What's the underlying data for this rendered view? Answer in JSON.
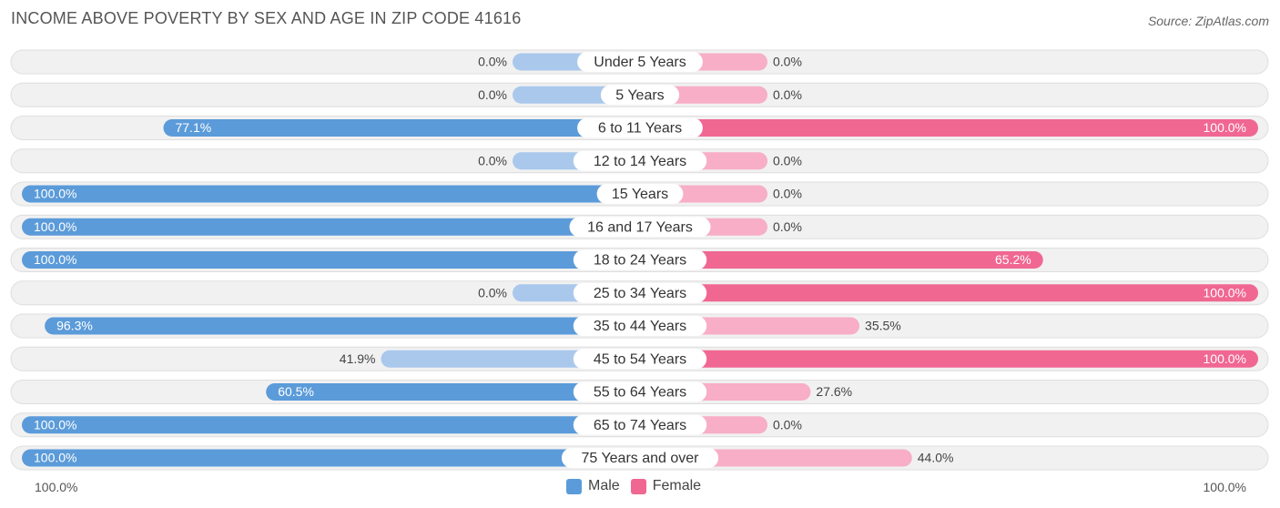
{
  "title": "INCOME ABOVE POVERTY BY SEX AND AGE IN ZIP CODE 41616",
  "source": "Source: ZipAtlas.com",
  "axis": {
    "left_label": "100.0%",
    "right_label": "100.0%"
  },
  "legend": [
    {
      "label": "Male",
      "color": "#5b9bd9"
    },
    {
      "label": "Female",
      "color": "#f06792"
    }
  ],
  "colors": {
    "male_strong": "#5b9bd9",
    "male_light": "#a9c8ec",
    "female_strong": "#f06792",
    "female_light": "#f7aec6",
    "row_bg": "#f1f1f1",
    "row_border": "#dedede"
  },
  "chart_data": {
    "type": "bar",
    "orientation": "horizontal-diverging",
    "title": "INCOME ABOVE POVERTY BY SEX AND AGE IN ZIP CODE 41616",
    "categories": [
      "Under 5 Years",
      "5 Years",
      "6 to 11 Years",
      "12 to 14 Years",
      "15 Years",
      "16 and 17 Years",
      "18 to 24 Years",
      "25 to 34 Years",
      "35 to 44 Years",
      "45 to 54 Years",
      "55 to 64 Years",
      "65 to 74 Years",
      "75 Years and over"
    ],
    "series": [
      {
        "name": "Male",
        "values": [
          0.0,
          0.0,
          77.1,
          0.0,
          100.0,
          100.0,
          100.0,
          0.0,
          96.3,
          41.9,
          60.5,
          100.0,
          100.0
        ],
        "labels": [
          "0.0%",
          "0.0%",
          "77.1%",
          "0.0%",
          "100.0%",
          "100.0%",
          "100.0%",
          "0.0%",
          "96.3%",
          "41.9%",
          "60.5%",
          "100.0%",
          "100.0%"
        ]
      },
      {
        "name": "Female",
        "values": [
          0.0,
          0.0,
          100.0,
          0.0,
          0.0,
          0.0,
          65.2,
          100.0,
          35.5,
          100.0,
          27.6,
          0.0,
          44.0
        ],
        "labels": [
          "0.0%",
          "0.0%",
          "100.0%",
          "0.0%",
          "0.0%",
          "0.0%",
          "65.2%",
          "100.0%",
          "35.5%",
          "100.0%",
          "27.6%",
          "0.0%",
          "44.0%"
        ]
      }
    ],
    "xlim": [
      0,
      100
    ],
    "legend_position": "bottom-center"
  }
}
